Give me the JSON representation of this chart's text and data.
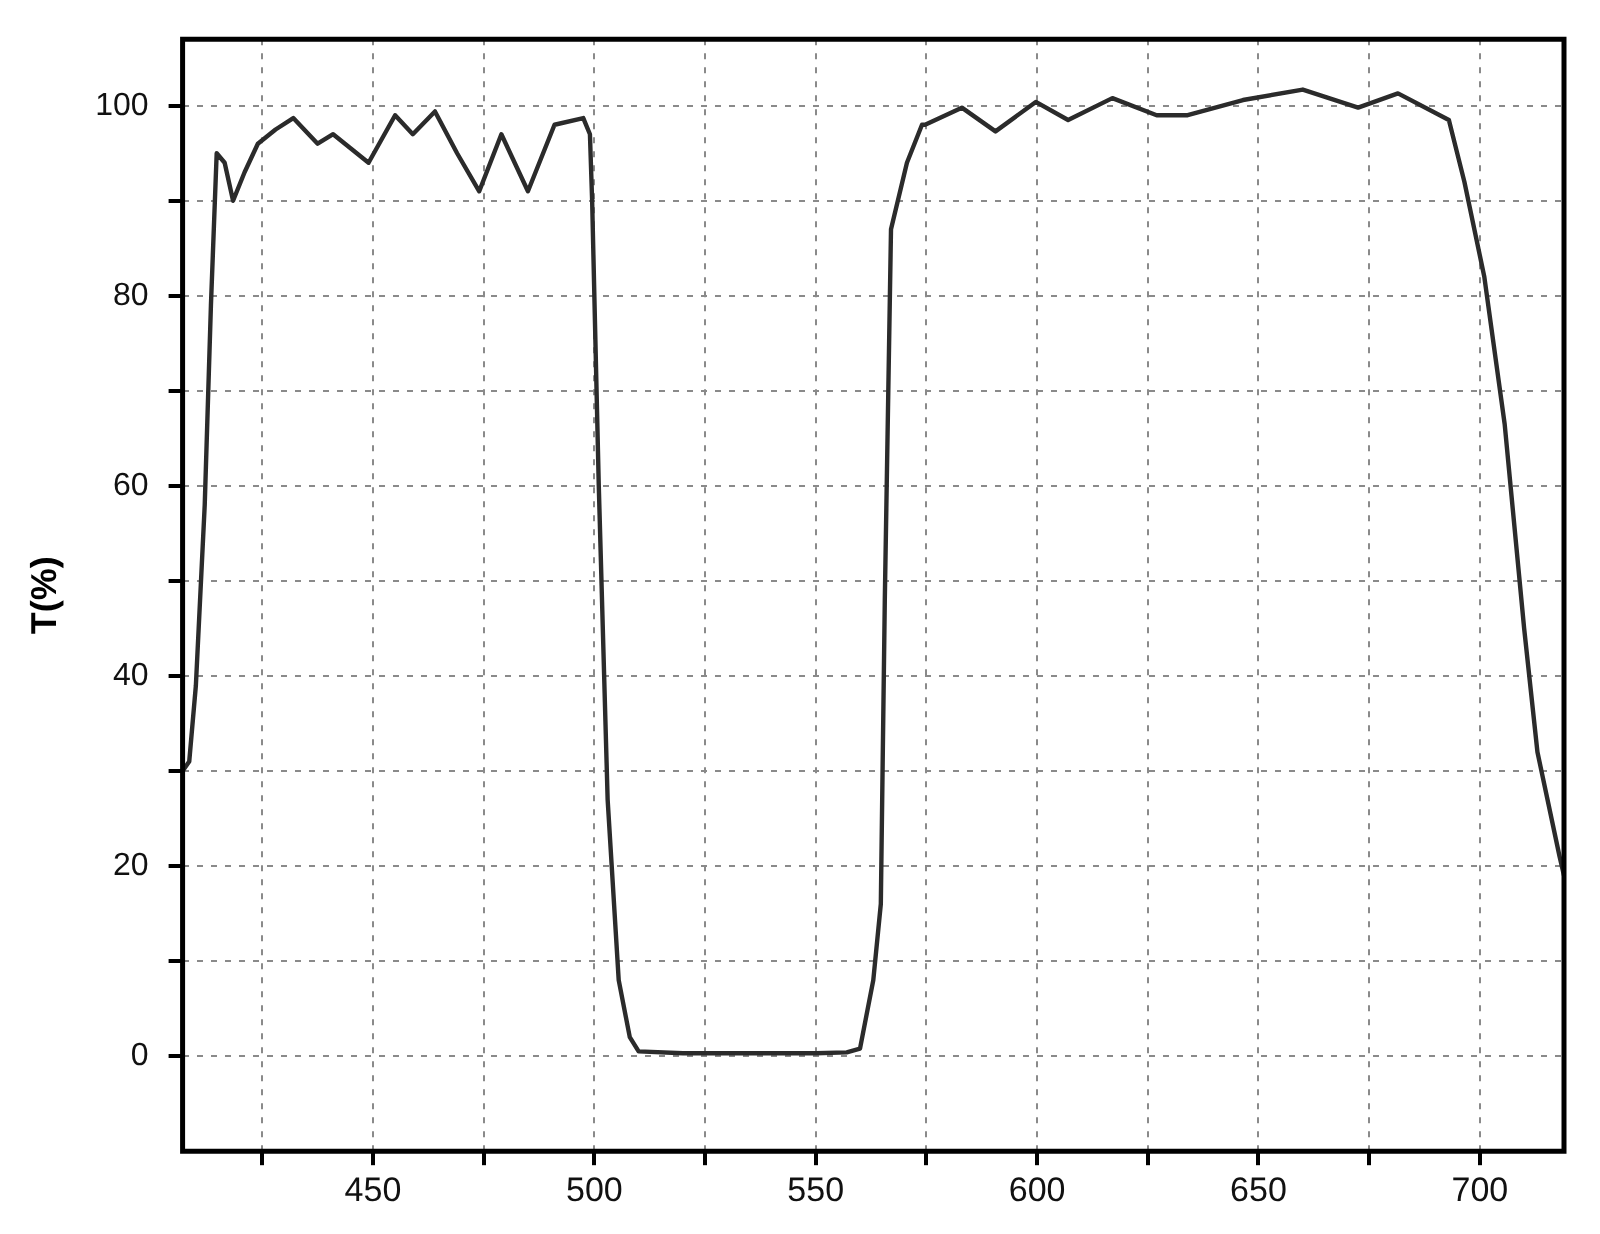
{
  "chart_data": {
    "type": "line",
    "ylabel": "T(%)",
    "xlim": [
      407,
      719
    ],
    "ylim": [
      -10,
      107
    ],
    "xticks": [
      {
        "value": 425,
        "label": null
      },
      450,
      {
        "value": 475,
        "label": null
      },
      500,
      {
        "value": 525,
        "label": null
      },
      550,
      {
        "value": 575,
        "label": null
      },
      600,
      {
        "value": 625,
        "label": null
      },
      650,
      {
        "value": 675,
        "label": null
      },
      700
    ],
    "yticks": [
      0,
      {
        "value": 10,
        "label": null
      },
      20,
      {
        "value": 30,
        "label": null
      },
      40,
      {
        "value": 50,
        "label": null
      },
      60,
      {
        "value": 70,
        "label": null
      },
      80,
      {
        "value": 90,
        "label": null
      },
      100
    ],
    "grid": true,
    "legend": false,
    "marker": "none",
    "line_style": "solid",
    "series": [
      {
        "color": "#2b2b2b",
        "x": [
          407,
          408.5,
          410,
          412,
          413.4,
          414.7,
          416.5,
          418.4,
          421,
          424,
          428,
          432,
          437.5,
          441,
          449,
          455,
          459,
          464,
          469,
          474,
          479,
          485,
          491,
          497.5,
          499,
          499.5,
          501,
          503,
          505.5,
          508,
          510,
          520,
          535,
          550,
          557,
          560,
          563,
          564.7,
          565.6,
          567,
          570.6,
          574,
          574.7,
          583,
          590.6,
          599.7,
          607,
          617,
          627,
          634,
          646.5,
          660,
          672.5,
          681.5,
          693,
          696.5,
          701,
          705.6,
          710,
          713,
          718,
          719
        ],
        "values": [
          30,
          31,
          39,
          58,
          79,
          95,
          94,
          90,
          93,
          96,
          97.5,
          98.7,
          96,
          97,
          94,
          99,
          97,
          99.4,
          95,
          91,
          97,
          91,
          98,
          98.7,
          97,
          90,
          60,
          27,
          8,
          2,
          0.5,
          0.3,
          0.3,
          0.3,
          0.4,
          0.8,
          8,
          16,
          48,
          87,
          94,
          98,
          98,
          99.8,
          97.3,
          100.4,
          98.5,
          100.8,
          99,
          99,
          100.6,
          101.7,
          99.8,
          101.3,
          98.5,
          92,
          82,
          66.5,
          45,
          32,
          21,
          19
        ]
      }
    ]
  }
}
